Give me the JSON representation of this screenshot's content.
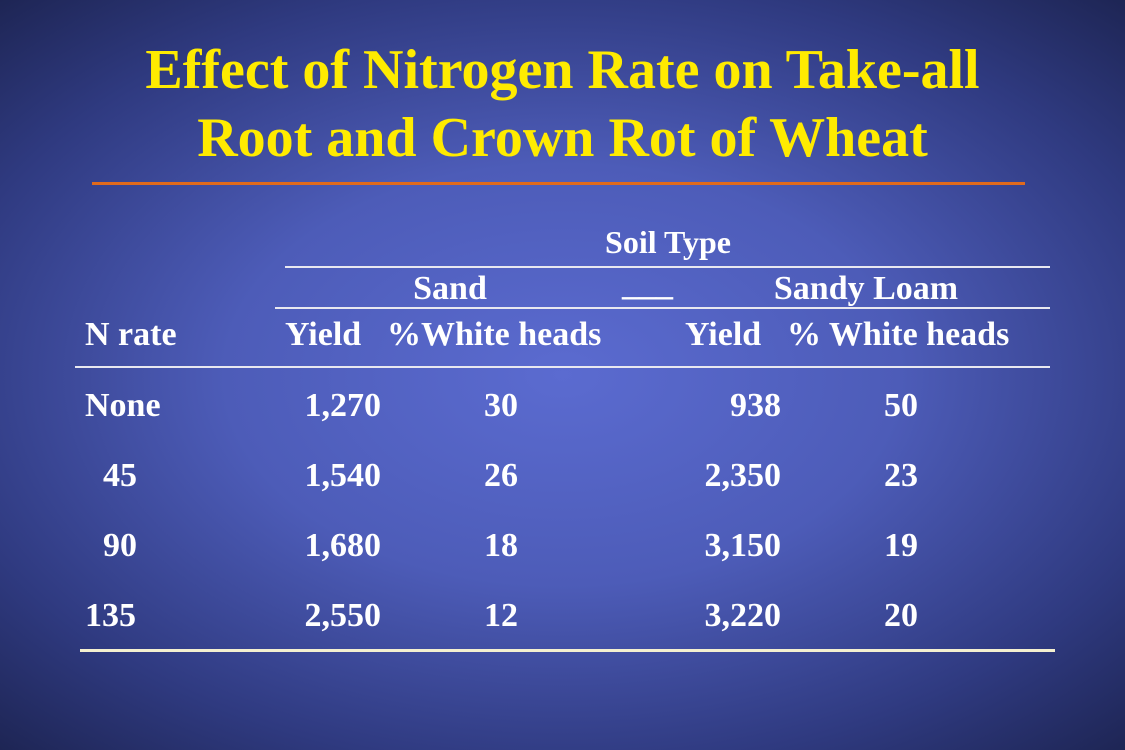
{
  "header": {
    "title": "Effect of Nitrogen Rate on Take-all Root and Crown Rot of Wheat"
  },
  "table": {
    "super_header": "Soil Type",
    "groups": [
      "Sand",
      "Sandy Loam"
    ],
    "group_separator": "___",
    "columns": [
      "N rate",
      "Yield",
      "%White heads",
      "Yield",
      "% White heads"
    ],
    "rows": [
      [
        "None",
        "1,270",
        "30",
        "938",
        "50"
      ],
      [
        "45",
        "1,540",
        "26",
        "2,350",
        "23"
      ],
      [
        "90",
        "1,680",
        "18",
        "3,150",
        "19"
      ],
      [
        "135",
        "2,550",
        "12",
        "3,220",
        "20"
      ]
    ]
  }
}
